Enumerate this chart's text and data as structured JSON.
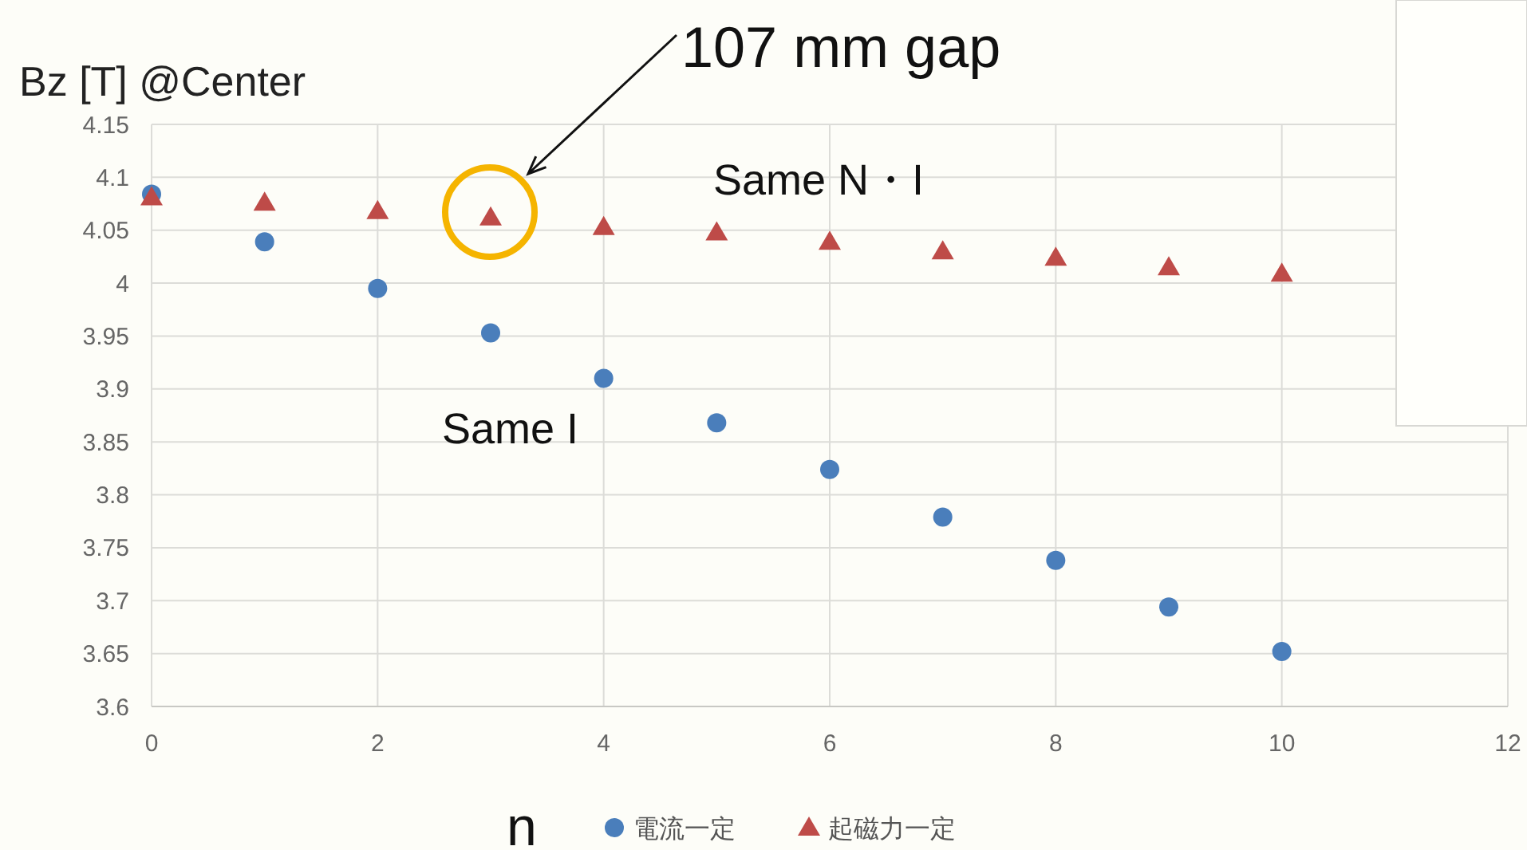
{
  "chart_data": {
    "type": "scatter",
    "ylabel": "Bz [T] @Center",
    "xlabel": "n",
    "x": [
      0,
      1,
      2,
      3,
      4,
      5,
      6,
      7,
      8,
      9,
      10
    ],
    "series": [
      {
        "name": "電流一定",
        "color": "#4a7ebb",
        "marker": "circle",
        "values": [
          4.084,
          4.039,
          3.995,
          3.953,
          3.91,
          3.868,
          3.824,
          3.779,
          3.738,
          3.694,
          3.652
        ]
      },
      {
        "name": "起磁力一定",
        "color": "#be4b48",
        "marker": "triangle",
        "values": [
          4.081,
          4.076,
          4.068,
          4.062,
          4.053,
          4.048,
          4.039,
          4.03,
          4.024,
          4.015,
          4.009
        ]
      }
    ],
    "xlim": [
      0,
      12
    ],
    "xticks": [
      0,
      2,
      4,
      6,
      8,
      10,
      12
    ],
    "ylim": [
      3.6,
      4.15
    ],
    "yticks": [
      3.6,
      3.65,
      3.7,
      3.75,
      3.8,
      3.85,
      3.9,
      3.95,
      4,
      4.05,
      4.1,
      4.15
    ],
    "grid": true,
    "legend": "bottom",
    "annotations": [
      "107 mm gap",
      "Same N・I",
      "Same I"
    ]
  }
}
